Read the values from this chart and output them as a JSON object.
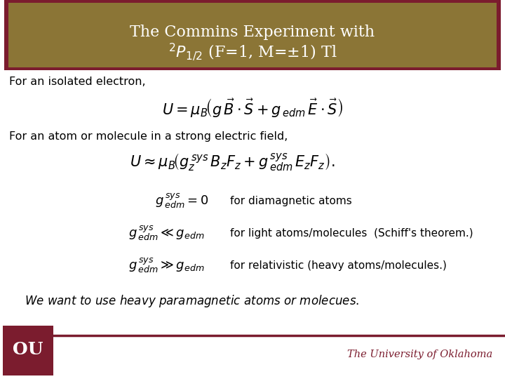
{
  "title_line1": "The Commins Experiment with",
  "title_line2": "^{2}P_{1/2} (F=1, M=\\pm 1) Tl",
  "header_bg": "#8B7536",
  "header_border": "#7B1C2E",
  "body_bg": "#FFFFFF",
  "footer_line_color": "#7B1C2E",
  "footer_text": "The University of Oklahoma",
  "footer_text_color": "#7B1C2E",
  "title_color": "#FFFFFF",
  "text_color": "#000000",
  "figsize": [
    7.2,
    5.4
  ],
  "dpi": 100
}
